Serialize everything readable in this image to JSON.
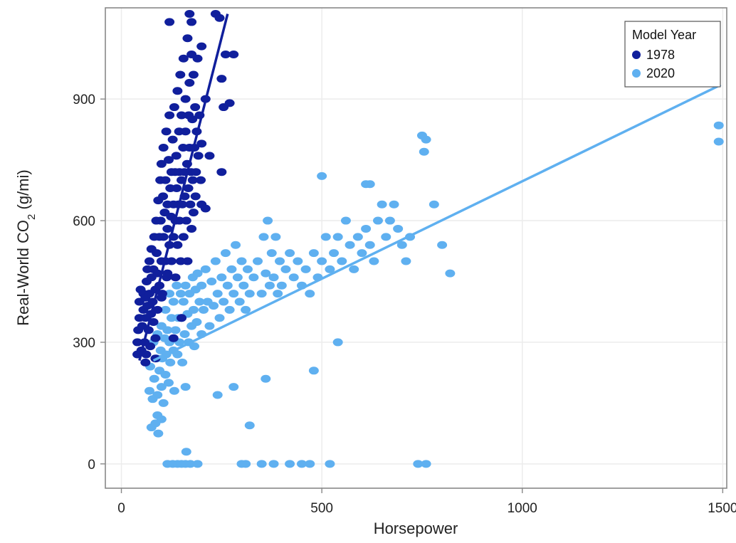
{
  "chart_data": {
    "type": "scatter",
    "xlabel": "Horsepower",
    "ylabel_main": "Real-World CO",
    "ylabel_sub": "2",
    "ylabel_tail": " (g/mi)",
    "xlim": [
      -40,
      1510
    ],
    "ylim": [
      -60,
      1125
    ],
    "x_ticks": [
      {
        "value": 0,
        "label": "0"
      },
      {
        "value": 500,
        "label": "500"
      },
      {
        "value": 1000,
        "label": "1000"
      },
      {
        "value": 1500,
        "label": "1500"
      }
    ],
    "y_ticks": [
      {
        "value": 0,
        "label": "0"
      },
      {
        "value": 300,
        "label": "300"
      },
      {
        "value": 600,
        "label": "600"
      },
      {
        "value": 900,
        "label": "900"
      }
    ],
    "grid": true,
    "legend": {
      "title": "Model Year",
      "placement": "top-right",
      "entries": [
        "1978",
        "2020"
      ]
    },
    "series": [
      {
        "name": "1978",
        "color": "#101f9c",
        "fit_line": {
          "x": [
            45,
            265
          ],
          "y": [
            255,
            1110
          ]
        },
        "points": [
          [
            40,
            270
          ],
          [
            40,
            300
          ],
          [
            42,
            330
          ],
          [
            45,
            360
          ],
          [
            45,
            400
          ],
          [
            48,
            430
          ],
          [
            50,
            280
          ],
          [
            52,
            340
          ],
          [
            55,
            380
          ],
          [
            55,
            420
          ],
          [
            58,
            300
          ],
          [
            60,
            360
          ],
          [
            60,
            410
          ],
          [
            62,
            270
          ],
          [
            63,
            450
          ],
          [
            65,
            390
          ],
          [
            65,
            480
          ],
          [
            68,
            330
          ],
          [
            70,
            420
          ],
          [
            70,
            500
          ],
          [
            72,
            290
          ],
          [
            74,
            370
          ],
          [
            75,
            460
          ],
          [
            75,
            530
          ],
          [
            78,
            400
          ],
          [
            80,
            350
          ],
          [
            80,
            480
          ],
          [
            82,
            560
          ],
          [
            85,
            310
          ],
          [
            85,
            430
          ],
          [
            87,
            600
          ],
          [
            88,
            520
          ],
          [
            90,
            380
          ],
          [
            90,
            470
          ],
          [
            92,
            650
          ],
          [
            95,
            560
          ],
          [
            95,
            440
          ],
          [
            97,
            700
          ],
          [
            98,
            600
          ],
          [
            100,
            500
          ],
          [
            100,
            740
          ],
          [
            102,
            420
          ],
          [
            104,
            660
          ],
          [
            105,
            560
          ],
          [
            105,
            780
          ],
          [
            108,
            620
          ],
          [
            110,
            500
          ],
          [
            110,
            700
          ],
          [
            112,
            820
          ],
          [
            113,
            460
          ],
          [
            115,
            640
          ],
          [
            115,
            580
          ],
          [
            118,
            750
          ],
          [
            120,
            540
          ],
          [
            120,
            860
          ],
          [
            122,
            680
          ],
          [
            124,
            610
          ],
          [
            125,
            720
          ],
          [
            125,
            500
          ],
          [
            128,
            800
          ],
          [
            130,
            640
          ],
          [
            130,
            560
          ],
          [
            132,
            880
          ],
          [
            134,
            720
          ],
          [
            135,
            600
          ],
          [
            135,
            460
          ],
          [
            137,
            760
          ],
          [
            138,
            680
          ],
          [
            140,
            920
          ],
          [
            140,
            540
          ],
          [
            142,
            640
          ],
          [
            144,
            820
          ],
          [
            145,
            720
          ],
          [
            145,
            600
          ],
          [
            147,
            960
          ],
          [
            148,
            500
          ],
          [
            150,
            700
          ],
          [
            150,
            860
          ],
          [
            152,
            640
          ],
          [
            154,
            780
          ],
          [
            155,
            1000
          ],
          [
            155,
            560
          ],
          [
            157,
            720
          ],
          [
            158,
            660
          ],
          [
            160,
            900
          ],
          [
            160,
            820
          ],
          [
            162,
            600
          ],
          [
            164,
            740
          ],
          [
            165,
            1050
          ],
          [
            165,
            500
          ],
          [
            167,
            680
          ],
          [
            168,
            860
          ],
          [
            170,
            780
          ],
          [
            170,
            940
          ],
          [
            172,
            640
          ],
          [
            174,
            720
          ],
          [
            175,
            1010
          ],
          [
            175,
            580
          ],
          [
            177,
            850
          ],
          [
            178,
            700
          ],
          [
            180,
            960
          ],
          [
            180,
            620
          ],
          [
            182,
            780
          ],
          [
            184,
            880
          ],
          [
            185,
            660
          ],
          [
            186,
            720
          ],
          [
            188,
            820
          ],
          [
            190,
            1000
          ],
          [
            192,
            760
          ],
          [
            195,
            860
          ],
          [
            198,
            700
          ],
          [
            200,
            640
          ],
          [
            210,
            900
          ],
          [
            220,
            760
          ],
          [
            235,
            1110
          ],
          [
            245,
            1100
          ],
          [
            250,
            950
          ],
          [
            255,
            880
          ],
          [
            260,
            1010
          ],
          [
            120,
            1090
          ],
          [
            170,
            1110
          ],
          [
            175,
            1090
          ],
          [
            200,
            1030
          ],
          [
            270,
            890
          ],
          [
            280,
            1010
          ],
          [
            200,
            790
          ],
          [
            210,
            630
          ],
          [
            250,
            720
          ],
          [
            100,
            410
          ],
          [
            130,
            310
          ],
          [
            150,
            360
          ],
          [
            85,
            260
          ],
          [
            60,
            250
          ],
          [
            115,
            470
          ]
        ]
      },
      {
        "name": "2020",
        "color": "#5fb0f0",
        "fit_line": {
          "x": [
            80,
            1495
          ],
          "y": [
            255,
            935
          ]
        },
        "points": [
          [
            70,
            180
          ],
          [
            72,
            240
          ],
          [
            75,
            90
          ],
          [
            78,
            160
          ],
          [
            80,
            300
          ],
          [
            82,
            210
          ],
          [
            85,
            100
          ],
          [
            88,
            260
          ],
          [
            90,
            170
          ],
          [
            90,
            320
          ],
          [
            92,
            75
          ],
          [
            95,
            230
          ],
          [
            98,
            280
          ],
          [
            100,
            190
          ],
          [
            100,
            340
          ],
          [
            102,
            260
          ],
          [
            105,
            150
          ],
          [
            108,
            310
          ],
          [
            110,
            220
          ],
          [
            110,
            380
          ],
          [
            112,
            270
          ],
          [
            115,
            330
          ],
          [
            115,
            0
          ],
          [
            118,
            200
          ],
          [
            120,
            300
          ],
          [
            120,
            420
          ],
          [
            122,
            250
          ],
          [
            125,
            360
          ],
          [
            128,
            0
          ],
          [
            130,
            280
          ],
          [
            130,
            400
          ],
          [
            132,
            180
          ],
          [
            135,
            330
          ],
          [
            138,
            440
          ],
          [
            140,
            270
          ],
          [
            140,
            0
          ],
          [
            142,
            360
          ],
          [
            145,
            300
          ],
          [
            148,
            420
          ],
          [
            150,
            0
          ],
          [
            150,
            360
          ],
          [
            152,
            250
          ],
          [
            155,
            400
          ],
          [
            158,
            320
          ],
          [
            160,
            440
          ],
          [
            160,
            0
          ],
          [
            162,
            30
          ],
          [
            165,
            370
          ],
          [
            168,
            300
          ],
          [
            170,
            420
          ],
          [
            172,
            0
          ],
          [
            175,
            340
          ],
          [
            178,
            460
          ],
          [
            180,
            380
          ],
          [
            182,
            290
          ],
          [
            185,
            430
          ],
          [
            188,
            350
          ],
          [
            190,
            0
          ],
          [
            190,
            470
          ],
          [
            195,
            400
          ],
          [
            200,
            320
          ],
          [
            200,
            440
          ],
          [
            205,
            380
          ],
          [
            210,
            480
          ],
          [
            215,
            400
          ],
          [
            220,
            340
          ],
          [
            225,
            450
          ],
          [
            230,
            390
          ],
          [
            235,
            500
          ],
          [
            240,
            420
          ],
          [
            245,
            360
          ],
          [
            250,
            460
          ],
          [
            255,
            400
          ],
          [
            260,
            520
          ],
          [
            265,
            440
          ],
          [
            270,
            380
          ],
          [
            275,
            480
          ],
          [
            280,
            420
          ],
          [
            285,
            540
          ],
          [
            290,
            460
          ],
          [
            295,
            400
          ],
          [
            300,
            500
          ],
          [
            305,
            440
          ],
          [
            310,
            380
          ],
          [
            315,
            480
          ],
          [
            320,
            420
          ],
          [
            330,
            460
          ],
          [
            340,
            500
          ],
          [
            350,
            420
          ],
          [
            355,
            560
          ],
          [
            360,
            470
          ],
          [
            365,
            600
          ],
          [
            370,
            440
          ],
          [
            375,
            520
          ],
          [
            380,
            460
          ],
          [
            385,
            560
          ],
          [
            390,
            420
          ],
          [
            395,
            500
          ],
          [
            400,
            440
          ],
          [
            410,
            480
          ],
          [
            420,
            520
          ],
          [
            430,
            460
          ],
          [
            440,
            500
          ],
          [
            450,
            440
          ],
          [
            460,
            480
          ],
          [
            470,
            420
          ],
          [
            480,
            520
          ],
          [
            490,
            460
          ],
          [
            500,
            500
          ],
          [
            510,
            560
          ],
          [
            520,
            480
          ],
          [
            530,
            520
          ],
          [
            540,
            560
          ],
          [
            550,
            500
          ],
          [
            560,
            600
          ],
          [
            570,
            540
          ],
          [
            580,
            480
          ],
          [
            590,
            560
          ],
          [
            600,
            520
          ],
          [
            610,
            580
          ],
          [
            620,
            540
          ],
          [
            630,
            500
          ],
          [
            640,
            600
          ],
          [
            650,
            640
          ],
          [
            660,
            560
          ],
          [
            670,
            600
          ],
          [
            680,
            640
          ],
          [
            690,
            580
          ],
          [
            700,
            540
          ],
          [
            710,
            500
          ],
          [
            720,
            560
          ],
          [
            750,
            810
          ],
          [
            755,
            770
          ],
          [
            760,
            800
          ],
          [
            780,
            640
          ],
          [
            800,
            540
          ],
          [
            820,
            470
          ],
          [
            610,
            690
          ],
          [
            620,
            690
          ],
          [
            500,
            710
          ],
          [
            540,
            300
          ],
          [
            480,
            230
          ],
          [
            360,
            210
          ],
          [
            320,
            95
          ],
          [
            310,
            0
          ],
          [
            300,
            0
          ],
          [
            350,
            0
          ],
          [
            380,
            0
          ],
          [
            420,
            0
          ],
          [
            450,
            0
          ],
          [
            470,
            0
          ],
          [
            520,
            0
          ],
          [
            740,
            0
          ],
          [
            760,
            0
          ],
          [
            90,
            120
          ],
          [
            100,
            110
          ],
          [
            240,
            170
          ],
          [
            280,
            190
          ],
          [
            160,
            190
          ],
          [
            1490,
            835
          ],
          [
            1490,
            795
          ]
        ]
      }
    ]
  }
}
